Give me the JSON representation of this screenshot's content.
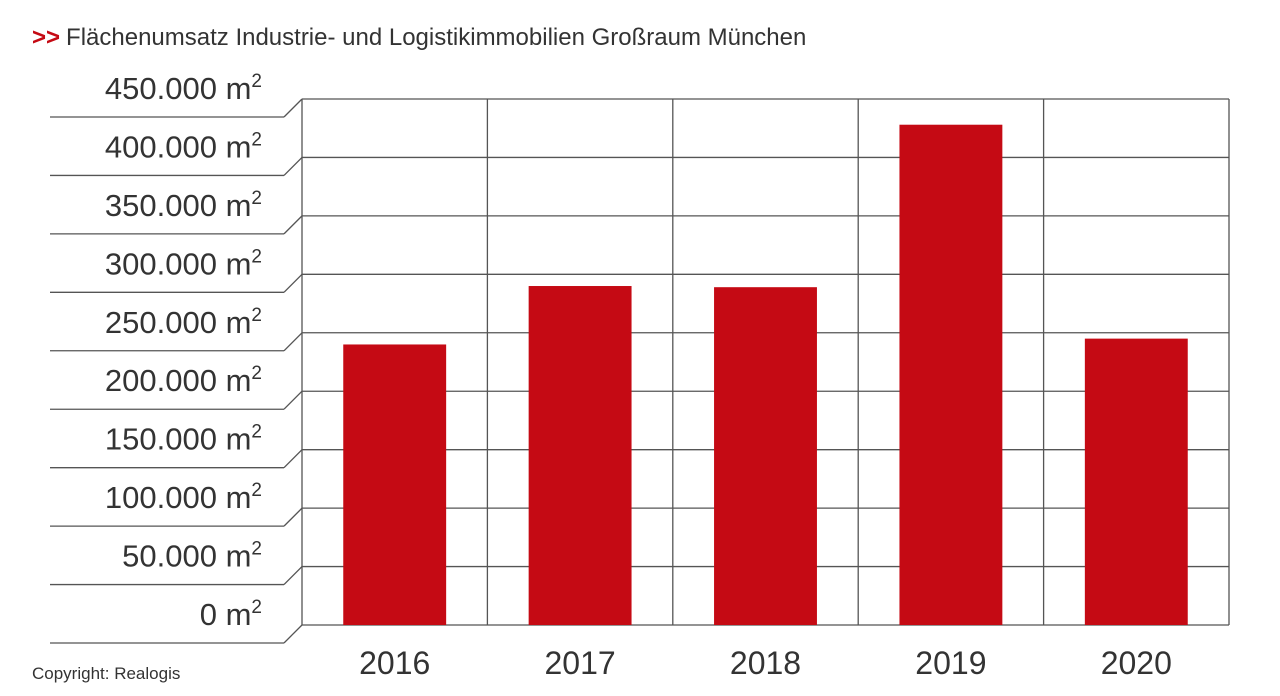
{
  "title": {
    "marker": ">>",
    "text": "Flächenumsatz Industrie- und Logistikimmobilien Großraum München"
  },
  "footer": {
    "copyright": "Copyright: Realogis"
  },
  "colors": {
    "bar": "#c50a14",
    "grid": "#555555",
    "text": "#333333"
  },
  "chart_data": {
    "type": "bar",
    "title": "Flächenumsatz Industrie- und Logistikimmobilien Großraum München",
    "categories": [
      "2016",
      "2017",
      "2018",
      "2019",
      "2020"
    ],
    "values": [
      240000,
      290000,
      289000,
      428000,
      245000
    ],
    "unit": "m²",
    "ylim": [
      0,
      450000
    ],
    "y_ticks": [
      0,
      50000,
      100000,
      150000,
      200000,
      250000,
      300000,
      350000,
      400000,
      450000
    ],
    "y_tick_labels": [
      "0 m",
      "50.000 m",
      "100.000 m",
      "150.000 m",
      "200.000 m",
      "250.000 m",
      "300.000 m",
      "350.000 m",
      "400.000 m",
      "450.000 m"
    ],
    "y_tick_superscript": "2",
    "grid": true,
    "legend": "none"
  }
}
